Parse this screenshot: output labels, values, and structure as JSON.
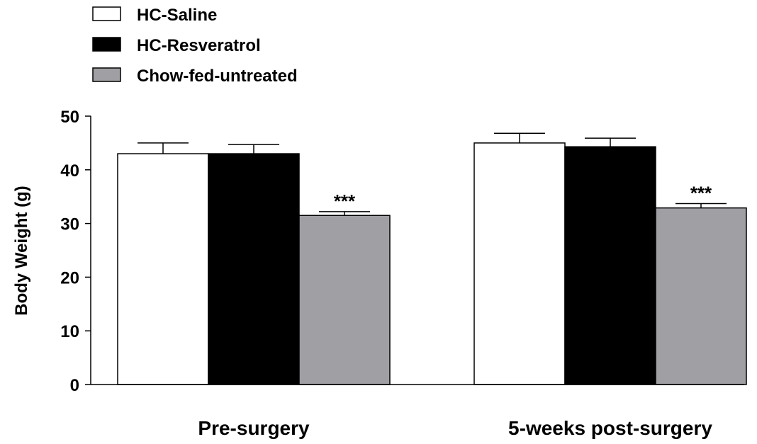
{
  "chart_data": {
    "type": "bar",
    "title": "",
    "xlabel": "",
    "ylabel": "Body Weight (g)",
    "ylim": [
      0,
      50
    ],
    "yticks": [
      0,
      10,
      20,
      30,
      40,
      50
    ],
    "categories": [
      "Pre-surgery",
      "5-weeks post-surgery"
    ],
    "series": [
      {
        "name": "HC-Saline",
        "color": "#ffffff",
        "values": [
          43.0,
          45.0
        ],
        "errors": [
          2.0,
          1.8
        ]
      },
      {
        "name": "HC-Resveratrol",
        "color": "#000000",
        "values": [
          43.0,
          44.3
        ],
        "errors": [
          1.7,
          1.6
        ]
      },
      {
        "name": "Chow-fed-untreated",
        "color": "#a0a0a4",
        "values": [
          31.5,
          32.9
        ],
        "errors": [
          0.7,
          0.8
        ]
      }
    ],
    "annotations": [
      {
        "category": 0,
        "series": 2,
        "text": "***"
      },
      {
        "category": 1,
        "series": 2,
        "text": "***"
      }
    ],
    "legend_position": "top-left",
    "grid": false
  }
}
